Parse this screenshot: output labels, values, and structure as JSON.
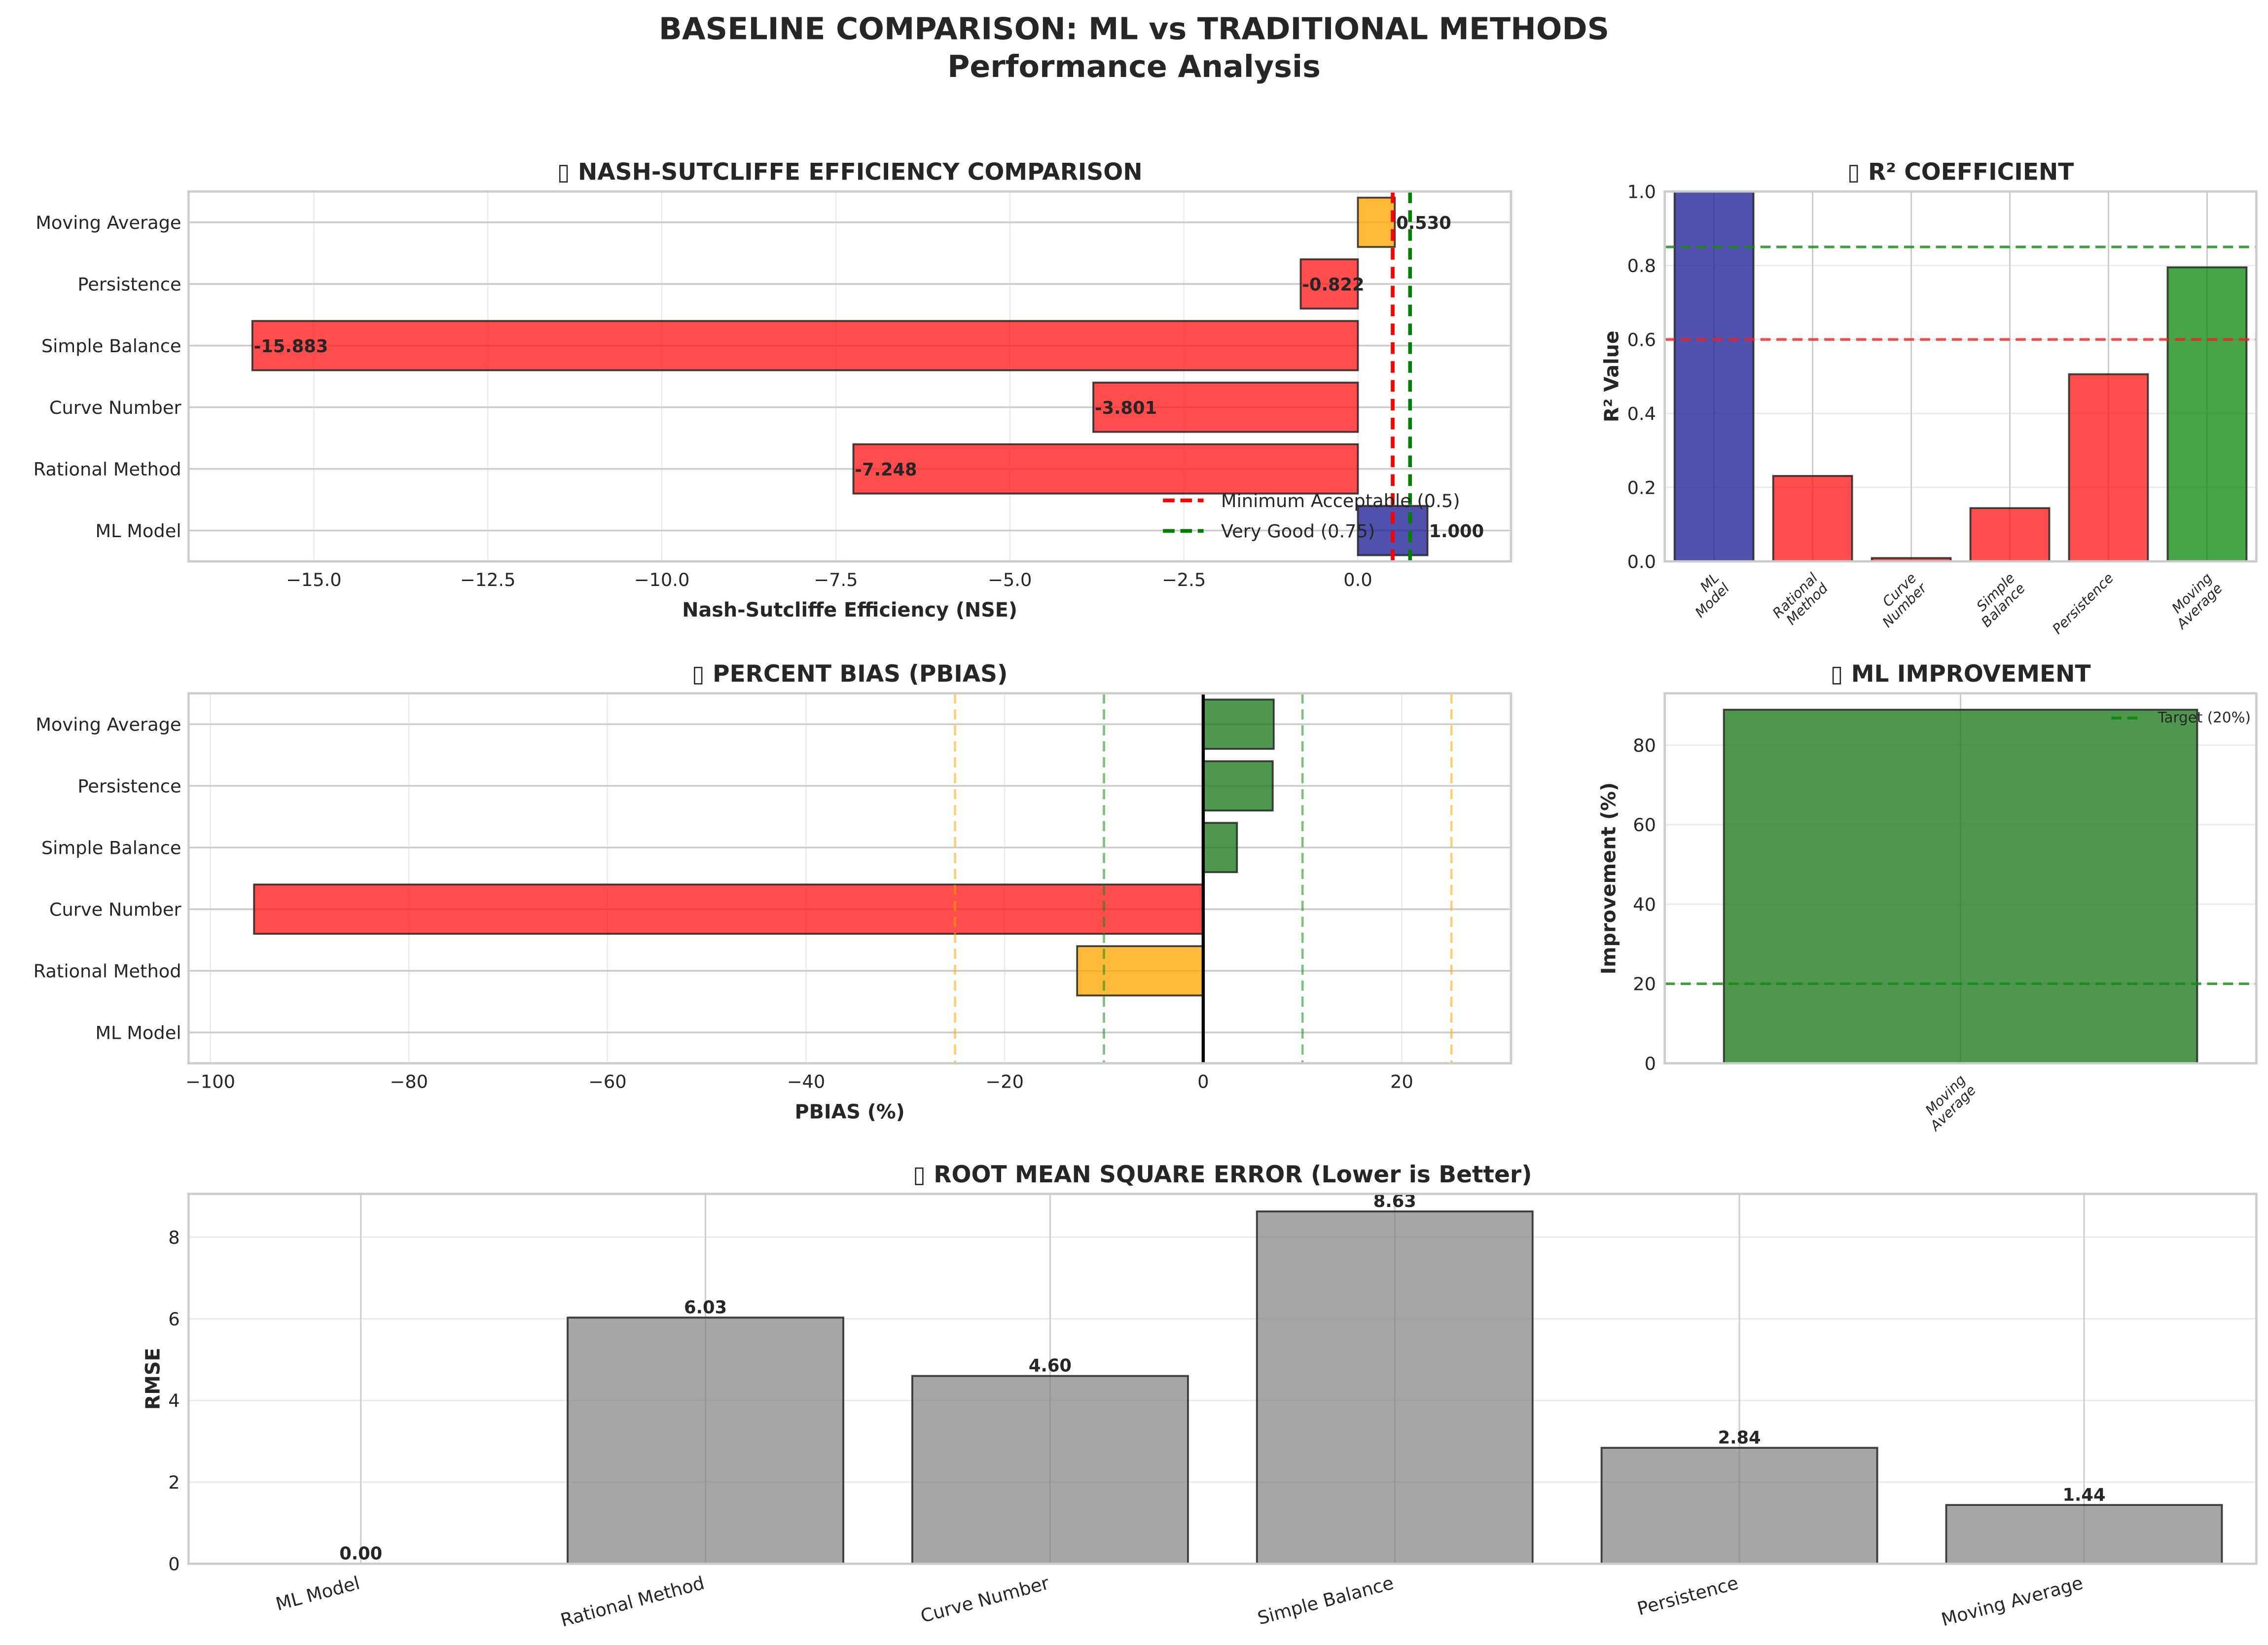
{
  "figure": {
    "title_line1": "BASELINE COMPARISON: ML vs TRADITIONAL METHODS",
    "title_line2": "Performance Analysis"
  },
  "colors": {
    "ml": "#1f1f96",
    "poor": "#ff1a1a",
    "fair": "#ffa500",
    "good": "#1e7a1e",
    "good_r2": "#138a13",
    "rmse": "#808080",
    "min_line": "#ff0000",
    "very_good_line": "#008000",
    "edge": "#262626",
    "grid": "#cccccc"
  },
  "chart_data": [
    {
      "id": "nse",
      "type": "bar",
      "orientation": "horizontal",
      "title": "▯ NASH-SUTCLIFFE EFFICIENCY COMPARISON",
      "xlabel": "Nash-Sutcliffe Efficiency (NSE)",
      "ylabel": "",
      "categories": [
        "ML Model",
        "Rational Method",
        "Curve Number",
        "Simple Balance",
        "Persistence",
        "Moving Average"
      ],
      "values": [
        1.0,
        -7.248,
        -3.801,
        -15.883,
        -0.822,
        0.53
      ],
      "value_labels": [
        "1.000",
        "-7.248",
        "-3.801",
        "-15.883",
        "-0.822",
        "0.530"
      ],
      "bar_colors": [
        "ml",
        "poor",
        "poor",
        "poor",
        "poor",
        "fair"
      ],
      "xlim": [
        -16.8,
        2.2
      ],
      "xticks": [
        -15.0,
        -12.5,
        -10.0,
        -7.5,
        -5.0,
        -2.5,
        0.0
      ],
      "xtick_labels": [
        "−15.0",
        "−12.5",
        "−10.0",
        "−7.5",
        "−5.0",
        "−2.5",
        "0.0"
      ],
      "reference_lines": [
        {
          "value": 0.5,
          "label": "Minimum Acceptable (0.5)",
          "color": "min_line"
        },
        {
          "value": 0.75,
          "label": "Very Good (0.75)",
          "color": "very_good_line"
        }
      ],
      "legend": "lower-right",
      "grid": true
    },
    {
      "id": "r2",
      "type": "bar",
      "title": "▯ R² COEFFICIENT",
      "xlabel": "",
      "ylabel": "R² Value",
      "categories": [
        "ML\nModel",
        "Rational\nMethod",
        "Curve\nNumber",
        "Simple\nBalance",
        "Persistence",
        "Moving\nAverage"
      ],
      "values": [
        1.0,
        0.231,
        0.009,
        0.144,
        0.506,
        0.795
      ],
      "bar_colors": [
        "ml",
        "poor",
        "poor",
        "poor",
        "poor",
        "good_r2"
      ],
      "ylim": [
        0,
        1.0
      ],
      "yticks": [
        0.0,
        0.2,
        0.4,
        0.6,
        0.8,
        1.0
      ],
      "ytick_labels": [
        "0.0",
        "0.2",
        "0.4",
        "0.6",
        "0.8",
        "1.0"
      ],
      "reference_lines": [
        {
          "value": 0.85,
          "color": "good_r2"
        },
        {
          "value": 0.6,
          "color": "poor"
        }
      ],
      "grid": true
    },
    {
      "id": "pbias",
      "type": "bar",
      "orientation": "horizontal",
      "title": "▯ PERCENT BIAS (PBIAS)",
      "xlabel": "PBIAS (%)",
      "ylabel": "",
      "categories": [
        "ML Model",
        "Rational Method",
        "Curve Number",
        "Simple Balance",
        "Persistence",
        "Moving Average"
      ],
      "values": [
        0.0,
        -12.7,
        -95.6,
        3.4,
        7.0,
        7.1
      ],
      "bar_colors": [
        "good",
        "fair",
        "poor",
        "good",
        "good",
        "good"
      ],
      "xlim": [
        -102.2,
        31.0
      ],
      "xticks": [
        -100,
        -80,
        -60,
        -40,
        -20,
        0,
        20
      ],
      "xtick_labels": [
        "−100",
        "−80",
        "−60",
        "−40",
        "−20",
        "0",
        "20"
      ],
      "reference_lines": [
        {
          "value": -25,
          "color": "fair"
        },
        {
          "value": -10,
          "color": "good_r2"
        },
        {
          "value": 10,
          "color": "good_r2"
        },
        {
          "value": 25,
          "color": "fair"
        },
        {
          "value": 0,
          "color": "black_solid"
        }
      ],
      "grid": true
    },
    {
      "id": "improvement",
      "type": "bar",
      "title": "▯ ML IMPROVEMENT",
      "xlabel": "",
      "ylabel": "Improvement (%)",
      "categories": [
        "Moving\nAverage"
      ],
      "values": [
        88.9
      ],
      "bar_colors": [
        "good"
      ],
      "ylim": [
        0,
        93
      ],
      "yticks": [
        0,
        20,
        40,
        60,
        80
      ],
      "ytick_labels": [
        "0",
        "20",
        "40",
        "60",
        "80"
      ],
      "reference_lines": [
        {
          "value": 20,
          "label": "Target (20%)",
          "color": "good_r2"
        }
      ],
      "legend": "upper-right",
      "grid": true
    },
    {
      "id": "rmse",
      "type": "bar",
      "title": "▯ ROOT MEAN SQUARE ERROR (Lower is Better)",
      "xlabel": "",
      "ylabel": "RMSE",
      "categories": [
        "ML Model",
        "Rational Method",
        "Curve Number",
        "Simple Balance",
        "Persistence",
        "Moving Average"
      ],
      "values": [
        0.0,
        6.03,
        4.6,
        8.63,
        2.84,
        1.44
      ],
      "value_labels": [
        "0.00",
        "6.03",
        "4.60",
        "8.63",
        "2.84",
        "1.44"
      ],
      "bar_colors": [
        "rmse",
        "rmse",
        "rmse",
        "rmse",
        "rmse",
        "rmse"
      ],
      "ylim": [
        0,
        9.06
      ],
      "yticks": [
        0,
        2,
        4,
        6,
        8
      ],
      "ytick_labels": [
        "0",
        "2",
        "4",
        "6",
        "8"
      ],
      "grid": true
    }
  ]
}
